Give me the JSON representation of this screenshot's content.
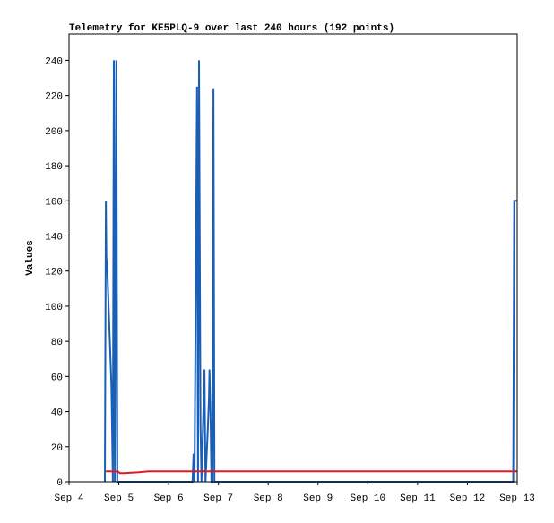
{
  "chart_data": {
    "type": "line",
    "title": "Telemetry for KE5PLQ-9 over last 240 hours (192 points)",
    "y_label": "Values",
    "xlim": [
      0,
      9
    ],
    "xticks": [
      {
        "value": 0,
        "label": "Sep 4"
      },
      {
        "value": 1,
        "label": "Sep 5"
      },
      {
        "value": 2,
        "label": "Sep 6"
      },
      {
        "value": 3,
        "label": "Sep 7"
      },
      {
        "value": 4,
        "label": "Sep 8"
      },
      {
        "value": 5,
        "label": "Sep 9"
      },
      {
        "value": 6,
        "label": "Sep 10"
      },
      {
        "value": 7,
        "label": "Sep 11"
      },
      {
        "value": 8,
        "label": "Sep 12"
      },
      {
        "value": 9,
        "label": "Sep 13"
      }
    ],
    "ylim": [
      0,
      255
    ],
    "yticks": [
      0,
      20,
      40,
      60,
      80,
      100,
      120,
      140,
      160,
      180,
      200,
      220,
      240
    ],
    "grid": false,
    "series": [
      {
        "color": "#1a5fb4",
        "x": [
          0.72,
          0.74,
          0.75,
          0.77,
          0.79,
          0.81,
          0.83,
          0.85,
          0.86,
          0.88,
          0.9,
          0.92,
          0.95,
          0.97,
          2.48,
          2.5,
          2.52,
          2.57,
          2.59,
          2.61,
          2.64,
          2.66,
          2.72,
          2.74,
          2.79,
          2.81,
          2.82,
          2.84,
          2.86,
          2.88,
          2.9,
          2.92,
          8.92,
          8.94,
          8.96,
          9.0
        ],
        "values": [
          0,
          160,
          128,
          120,
          104,
          88,
          72,
          56,
          40,
          0,
          240,
          0,
          240,
          0,
          0,
          16,
          0,
          225,
          0,
          240,
          32,
          0,
          64,
          0,
          32,
          48,
          64,
          40,
          0,
          0,
          224,
          0,
          0,
          160,
          160,
          160
        ]
      },
      {
        "color": "#e01b24",
        "x": [
          0.74,
          0.98,
          1.02,
          1.1,
          1.4,
          1.6,
          9.0
        ],
        "values": [
          6,
          6,
          5,
          5,
          5.5,
          6,
          6
        ]
      }
    ]
  }
}
